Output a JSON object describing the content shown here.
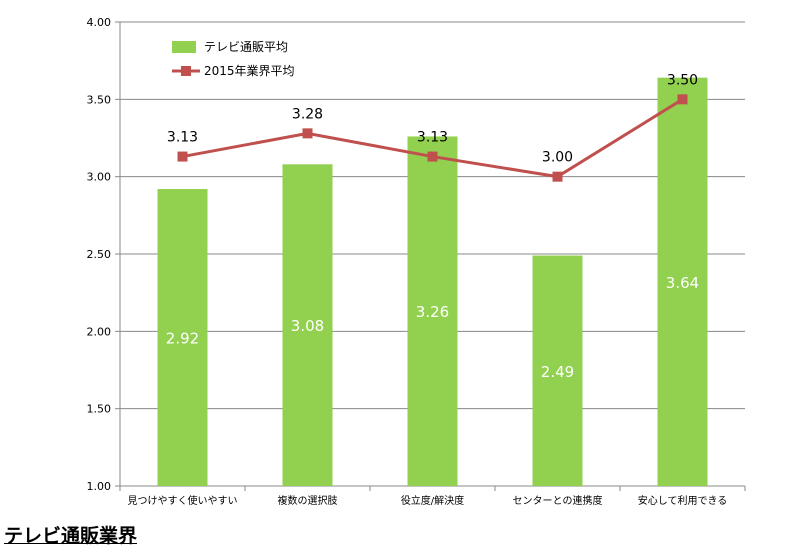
{
  "chart_data": {
    "type": "bar",
    "categories": [
      "見つけやすく使いやすい",
      "複数の選択肢",
      "役立度/解決度",
      "センターとの連携度",
      "安心して利用できる"
    ],
    "series": [
      {
        "name": "テレビ通販平均",
        "type": "bar",
        "values": [
          2.92,
          3.08,
          3.26,
          2.49,
          3.64
        ],
        "color": "#92D050"
      },
      {
        "name": "2015年業界平均",
        "type": "line",
        "values": [
          3.13,
          3.28,
          3.13,
          3.0,
          3.5
        ],
        "color": "#C0504D"
      }
    ],
    "ylim": [
      1.0,
      4.0
    ],
    "yticks": [
      "1.00",
      "1.50",
      "2.00",
      "2.50",
      "3.00",
      "3.50",
      "4.00"
    ],
    "grid": true,
    "legend": "top-left"
  },
  "footer": {
    "title": "テレビ通販業界"
  }
}
